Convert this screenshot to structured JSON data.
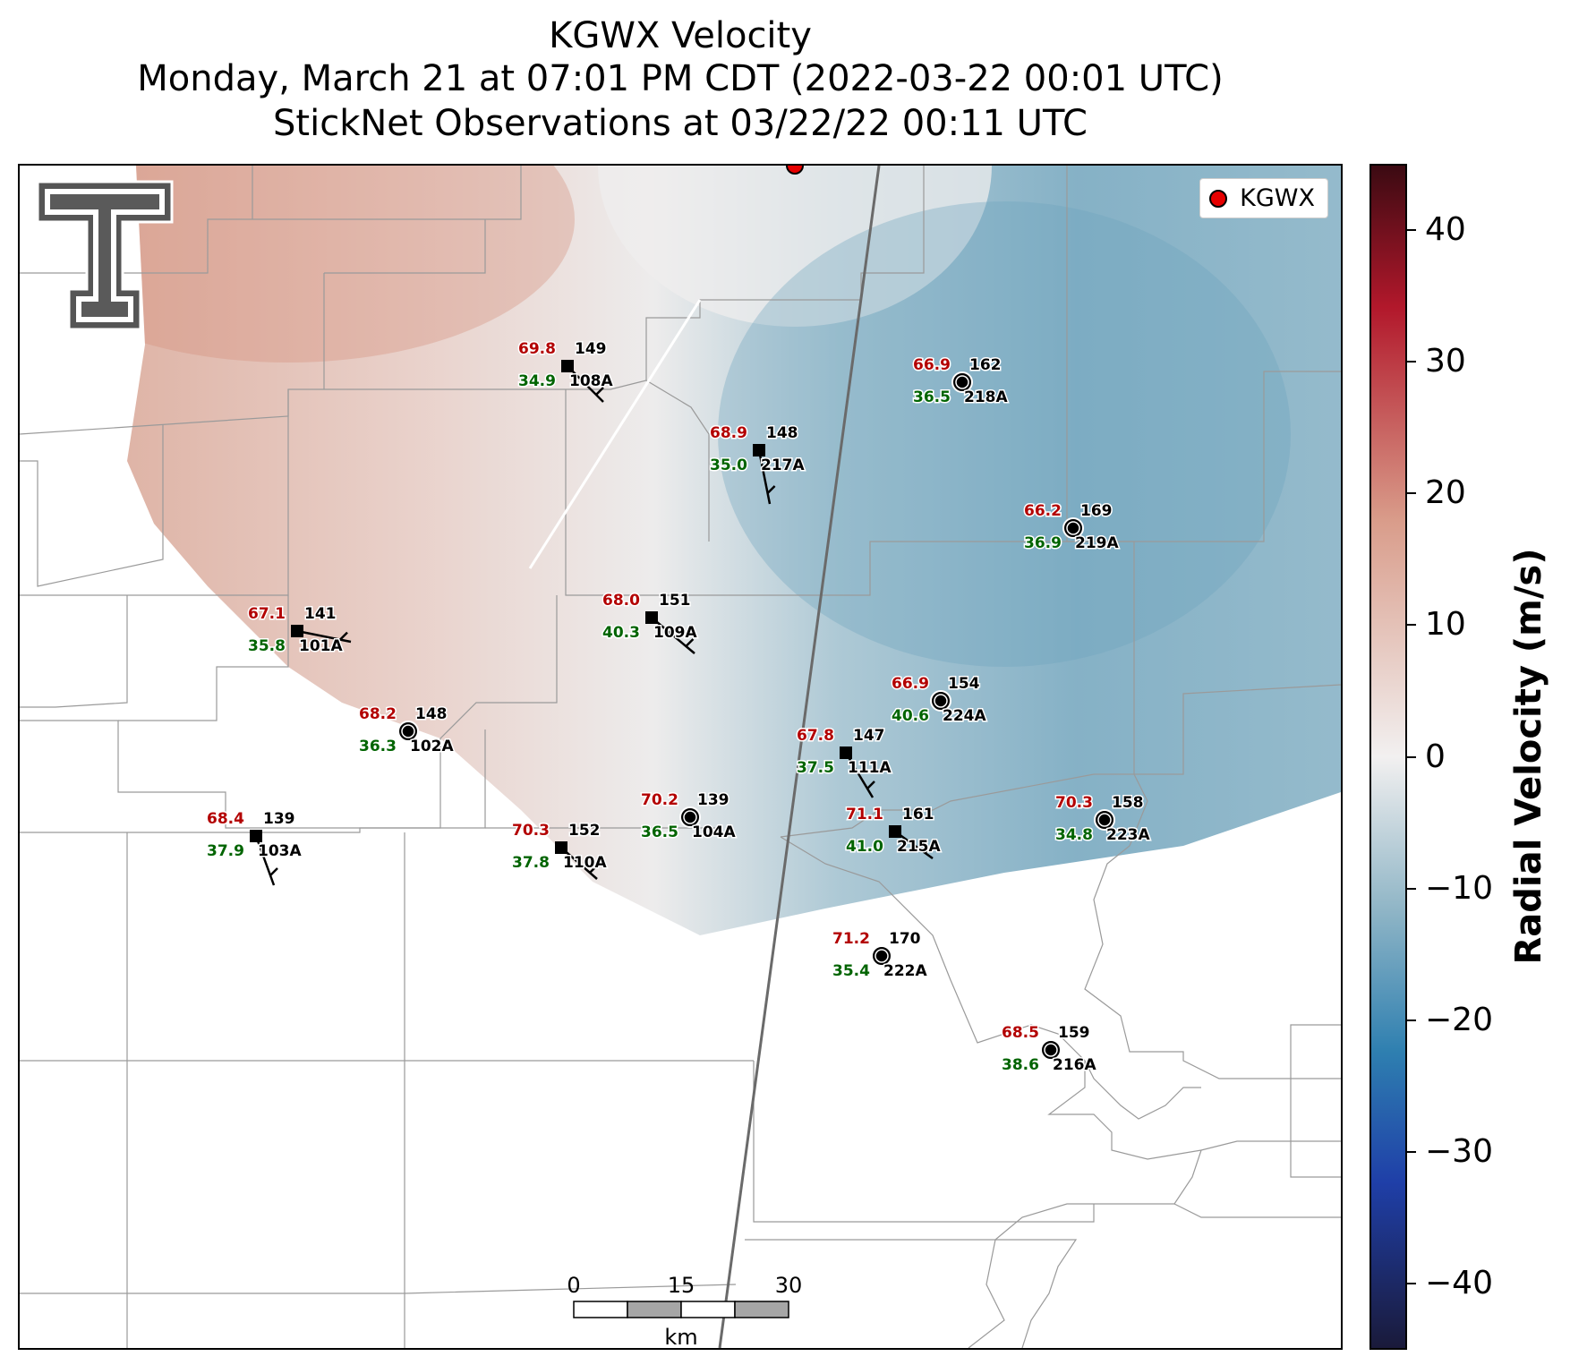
{
  "title": {
    "line1": "KGWX Velocity",
    "line2": "Monday, March 21 at 07:01 PM CDT (2022-03-22 00:01 UTC)",
    "line3": "StickNet Observations at 03/22/22 00:11 UTC"
  },
  "legend": {
    "label": "KGWX",
    "marker_color": "#e60000"
  },
  "colorbar": {
    "title": "Radial Velocity (m/s)",
    "ticks": [
      "40",
      "30",
      "20",
      "10",
      "0",
      "−10",
      "−20",
      "−30",
      "−40"
    ],
    "tick_values": [
      40,
      30,
      20,
      10,
      0,
      -10,
      -20,
      -30,
      -40
    ],
    "range": [
      -45,
      45
    ],
    "colors": {
      "max": "#3b0a12",
      "pos": "#b2182b",
      "light_pos": "#d99c8a",
      "zero": "#f2f0f0",
      "light_neg": "#8fb5c6",
      "neg": "#2e7fb0",
      "strong_neg": "#1f3fa8",
      "min": "#1a1a3a"
    }
  },
  "scale_bar": {
    "labels": [
      "0",
      "15",
      "30"
    ],
    "unit": "km"
  },
  "colors": {
    "temp": "#b30000",
    "dew": "#006400",
    "station": "#000000",
    "border": "#9a9a9a"
  },
  "stations": [
    {
      "id": "108A",
      "temp": "69.8",
      "dew": "34.9",
      "num": "149",
      "marker": "square"
    },
    {
      "id": "218A",
      "temp": "66.9",
      "dew": "36.5",
      "num": "162",
      "marker": "circle"
    },
    {
      "id": "217A",
      "temp": "68.9",
      "dew": "35.0",
      "num": "148",
      "marker": "square"
    },
    {
      "id": "219A",
      "temp": "66.2",
      "dew": "36.9",
      "num": "169",
      "marker": "circle"
    },
    {
      "id": "101A",
      "temp": "67.1",
      "dew": "35.8",
      "num": "141",
      "marker": "square"
    },
    {
      "id": "109A",
      "temp": "68.0",
      "dew": "40.3",
      "num": "151",
      "marker": "square"
    },
    {
      "id": "224A",
      "temp": "66.9",
      "dew": "40.6",
      "num": "154",
      "marker": "circle"
    },
    {
      "id": "102A",
      "temp": "68.2",
      "dew": "36.3",
      "num": "148",
      "marker": "circle"
    },
    {
      "id": "111A",
      "temp": "67.8",
      "dew": "37.5",
      "num": "147",
      "marker": "square"
    },
    {
      "id": "103A",
      "temp": "68.4",
      "dew": "37.9",
      "num": "139",
      "marker": "square"
    },
    {
      "id": "110A",
      "temp": "70.3",
      "dew": "37.8",
      "num": "152",
      "marker": "square"
    },
    {
      "id": "104A",
      "temp": "70.2",
      "dew": "36.5",
      "num": "139",
      "marker": "circle"
    },
    {
      "id": "215A",
      "temp": "71.1",
      "dew": "41.0",
      "num": "161",
      "marker": "square"
    },
    {
      "id": "223A",
      "temp": "70.3",
      "dew": "34.8",
      "num": "158",
      "marker": "circle"
    },
    {
      "id": "222A",
      "temp": "71.2",
      "dew": "35.4",
      "num": "170",
      "marker": "circle"
    },
    {
      "id": "216A",
      "temp": "68.5",
      "dew": "38.6",
      "num": "159",
      "marker": "circle"
    }
  ]
}
